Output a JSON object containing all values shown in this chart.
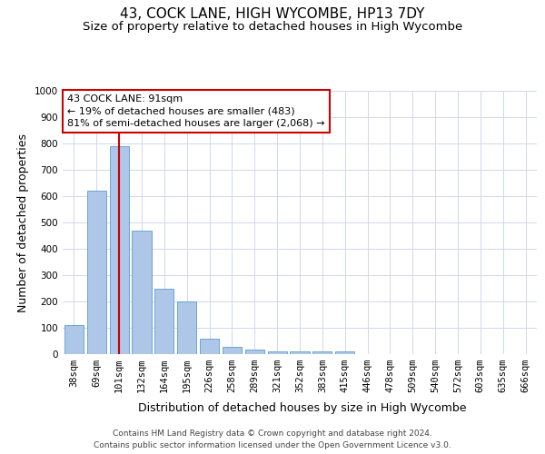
{
  "title": "43, COCK LANE, HIGH WYCOMBE, HP13 7DY",
  "subtitle": "Size of property relative to detached houses in High Wycombe",
  "xlabel": "Distribution of detached houses by size in High Wycombe",
  "ylabel": "Number of detached properties",
  "footer_line1": "Contains HM Land Registry data © Crown copyright and database right 2024.",
  "footer_line2": "Contains public sector information licensed under the Open Government Licence v3.0.",
  "annotation_line1": "43 COCK LANE: 91sqm",
  "annotation_line2": "← 19% of detached houses are smaller (483)",
  "annotation_line3": "81% of semi-detached houses are larger (2,068) →",
  "bar_color": "#aec6e8",
  "bar_edge_color": "#5b9bd5",
  "highlight_color": "#cc0000",
  "background_color": "#ffffff",
  "grid_color": "#d0d8e8",
  "categories": [
    "38sqm",
    "69sqm",
    "101sqm",
    "132sqm",
    "164sqm",
    "195sqm",
    "226sqm",
    "258sqm",
    "289sqm",
    "321sqm",
    "352sqm",
    "383sqm",
    "415sqm",
    "446sqm",
    "478sqm",
    "509sqm",
    "540sqm",
    "572sqm",
    "603sqm",
    "635sqm",
    "666sqm"
  ],
  "values": [
    110,
    620,
    790,
    470,
    250,
    200,
    60,
    28,
    18,
    12,
    10,
    10,
    10,
    0,
    0,
    0,
    0,
    0,
    0,
    0,
    0
  ],
  "highlight_bar_index": 2,
  "ylim": [
    0,
    1000
  ],
  "yticks": [
    0,
    100,
    200,
    300,
    400,
    500,
    600,
    700,
    800,
    900,
    1000
  ],
  "title_fontsize": 11,
  "subtitle_fontsize": 9.5,
  "axis_label_fontsize": 9,
  "tick_fontsize": 7.5,
  "annotation_fontsize": 8,
  "footer_fontsize": 6.5
}
